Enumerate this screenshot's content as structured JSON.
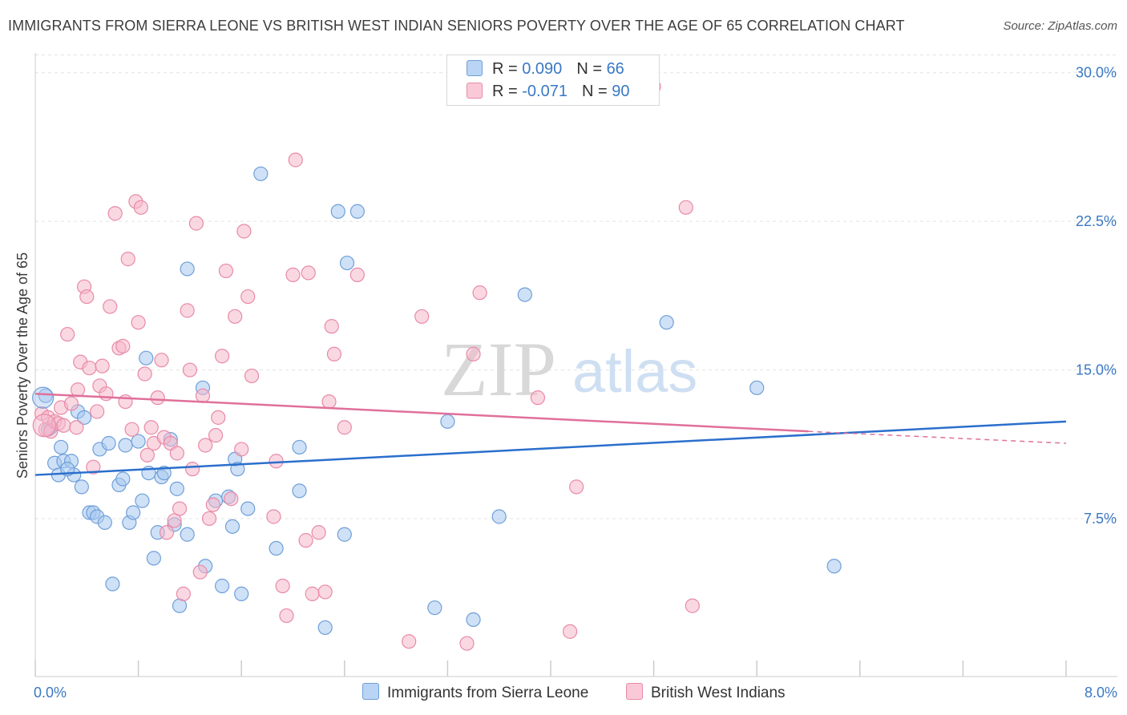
{
  "header": {
    "title": "IMMIGRANTS FROM SIERRA LEONE VS BRITISH WEST INDIAN SENIORS POVERTY OVER THE AGE OF 65 CORRELATION CHART",
    "source": "Source: ZipAtlas.com"
  },
  "watermark": {
    "zip": "ZIP",
    "atlas": "atlas"
  },
  "legend": {
    "series1": {
      "r_label": "R = ",
      "r_value": "0.090",
      "n_label": "N = ",
      "n_value": "66"
    },
    "series2": {
      "r_label": "R = ",
      "r_value": "-0.071",
      "n_label": "N = ",
      "n_value": "90"
    }
  },
  "colors": {
    "blue_fill": "#a8c8f0",
    "blue_stroke": "#6f9fd8",
    "blue_line": "#2a6fcc",
    "pink_fill": "#f6b8cb",
    "pink_stroke": "#e88aa8",
    "pink_line": "#e0709a",
    "grid": "#e3e3e3",
    "axis": "#cccccc",
    "tick_text": "#3a78c4"
  },
  "chart_data": {
    "type": "scatter",
    "title": "IMMIGRANTS FROM SIERRA LEONE VS BRITISH WEST INDIAN SENIORS POVERTY OVER THE AGE OF 65 CORRELATION CHART",
    "xlabel": "",
    "ylabel": "Seniors Poverty Over the Age of 65",
    "xlim": [
      0,
      8
    ],
    "ylim": [
      0.5,
      31.0
    ],
    "x_tick_labels": [
      {
        "value": 0,
        "label": "0.0%"
      },
      {
        "value": 8,
        "label": "8.0%"
      }
    ],
    "y_ticks": [
      {
        "value": 7.5,
        "label": "7.5%"
      },
      {
        "value": 15.0,
        "label": "15.0%"
      },
      {
        "value": 22.5,
        "label": "22.5%"
      },
      {
        "value": 30.0,
        "label": "30.0%"
      }
    ],
    "series": [
      {
        "name": "Immigrants from Sierra Leone",
        "color": "#a8c8f0",
        "trend": {
          "x": [
            0,
            8
          ],
          "y": [
            9.7,
            12.4
          ]
        },
        "points": [
          [
            0.08,
            13.7
          ],
          [
            0.12,
            12.1
          ],
          [
            0.15,
            10.3
          ],
          [
            0.18,
            9.7
          ],
          [
            0.2,
            11.1
          ],
          [
            0.22,
            10.4
          ],
          [
            0.28,
            10.4
          ],
          [
            0.3,
            9.7
          ],
          [
            0.33,
            12.9
          ],
          [
            0.36,
            9.1
          ],
          [
            0.38,
            12.6
          ],
          [
            0.42,
            7.8
          ],
          [
            0.45,
            7.8
          ],
          [
            0.48,
            7.6
          ],
          [
            0.5,
            11.0
          ],
          [
            0.54,
            7.3
          ],
          [
            0.57,
            11.3
          ],
          [
            0.6,
            4.2
          ],
          [
            0.65,
            9.2
          ],
          [
            0.68,
            9.5
          ],
          [
            0.7,
            11.2
          ],
          [
            0.73,
            7.3
          ],
          [
            0.76,
            7.8
          ],
          [
            0.8,
            11.4
          ],
          [
            0.83,
            8.4
          ],
          [
            0.86,
            15.6
          ],
          [
            0.88,
            9.8
          ],
          [
            0.92,
            5.5
          ],
          [
            0.95,
            6.8
          ],
          [
            0.98,
            9.6
          ],
          [
            1.0,
            9.8
          ],
          [
            1.05,
            11.5
          ],
          [
            1.08,
            7.2
          ],
          [
            1.1,
            9.0
          ],
          [
            1.12,
            3.1
          ],
          [
            1.18,
            6.7
          ],
          [
            1.18,
            20.1
          ],
          [
            1.3,
            14.1
          ],
          [
            1.32,
            5.1
          ],
          [
            1.4,
            8.4
          ],
          [
            1.45,
            4.1
          ],
          [
            1.5,
            8.6
          ],
          [
            1.53,
            7.1
          ],
          [
            1.55,
            10.5
          ],
          [
            1.57,
            10.0
          ],
          [
            1.6,
            3.7
          ],
          [
            1.65,
            8.0
          ],
          [
            1.75,
            24.9
          ],
          [
            1.87,
            6.0
          ],
          [
            2.05,
            11.1
          ],
          [
            2.05,
            8.9
          ],
          [
            2.25,
            2.0
          ],
          [
            2.35,
            23.0
          ],
          [
            2.4,
            6.7
          ],
          [
            2.42,
            20.4
          ],
          [
            2.5,
            23.0
          ],
          [
            3.1,
            3.0
          ],
          [
            3.2,
            12.4
          ],
          [
            3.4,
            2.4
          ],
          [
            3.6,
            7.6
          ],
          [
            3.8,
            18.8
          ],
          [
            4.9,
            17.4
          ],
          [
            5.6,
            14.1
          ],
          [
            6.2,
            5.1
          ],
          [
            0.1,
            12.0
          ],
          [
            0.25,
            10.0
          ]
        ]
      },
      {
        "name": "British West Indians",
        "color": "#f6b8cb",
        "trend": {
          "x": [
            0,
            6.0
          ],
          "y": [
            13.8,
            11.9
          ]
        },
        "trend_dashed": {
          "x": [
            6.0,
            8
          ],
          "y": [
            11.9,
            11.3
          ]
        },
        "points": [
          [
            0.05,
            12.8
          ],
          [
            0.08,
            12.0
          ],
          [
            0.1,
            12.6
          ],
          [
            0.12,
            11.9
          ],
          [
            0.15,
            12.4
          ],
          [
            0.18,
            12.3
          ],
          [
            0.2,
            13.1
          ],
          [
            0.22,
            12.2
          ],
          [
            0.25,
            16.8
          ],
          [
            0.28,
            13.3
          ],
          [
            0.32,
            12.1
          ],
          [
            0.33,
            14.0
          ],
          [
            0.35,
            15.4
          ],
          [
            0.38,
            19.2
          ],
          [
            0.4,
            18.7
          ],
          [
            0.42,
            15.1
          ],
          [
            0.45,
            10.1
          ],
          [
            0.48,
            12.9
          ],
          [
            0.5,
            14.2
          ],
          [
            0.52,
            15.2
          ],
          [
            0.55,
            13.8
          ],
          [
            0.58,
            18.2
          ],
          [
            0.62,
            22.9
          ],
          [
            0.65,
            16.1
          ],
          [
            0.68,
            16.2
          ],
          [
            0.7,
            13.4
          ],
          [
            0.72,
            20.6
          ],
          [
            0.75,
            12.0
          ],
          [
            0.78,
            23.5
          ],
          [
            0.8,
            17.4
          ],
          [
            0.82,
            23.2
          ],
          [
            0.85,
            14.8
          ],
          [
            0.87,
            10.7
          ],
          [
            0.9,
            12.1
          ],
          [
            0.92,
            11.3
          ],
          [
            0.95,
            13.6
          ],
          [
            0.98,
            15.5
          ],
          [
            1.0,
            11.6
          ],
          [
            1.02,
            6.8
          ],
          [
            1.05,
            11.3
          ],
          [
            1.08,
            7.4
          ],
          [
            1.1,
            10.8
          ],
          [
            1.12,
            8.0
          ],
          [
            1.15,
            3.7
          ],
          [
            1.18,
            18.0
          ],
          [
            1.2,
            15.0
          ],
          [
            1.22,
            10.0
          ],
          [
            1.25,
            22.4
          ],
          [
            1.28,
            4.8
          ],
          [
            1.3,
            13.7
          ],
          [
            1.32,
            11.2
          ],
          [
            1.35,
            7.5
          ],
          [
            1.38,
            8.2
          ],
          [
            1.4,
            11.7
          ],
          [
            1.42,
            12.6
          ],
          [
            1.45,
            15.7
          ],
          [
            1.48,
            20.0
          ],
          [
            1.52,
            8.5
          ],
          [
            1.55,
            17.7
          ],
          [
            1.6,
            11.0
          ],
          [
            1.62,
            22.0
          ],
          [
            1.65,
            18.7
          ],
          [
            1.68,
            14.7
          ],
          [
            1.85,
            7.6
          ],
          [
            1.87,
            10.4
          ],
          [
            1.92,
            4.1
          ],
          [
            1.95,
            2.6
          ],
          [
            2.0,
            19.8
          ],
          [
            2.02,
            25.6
          ],
          [
            2.1,
            6.4
          ],
          [
            2.12,
            19.9
          ],
          [
            2.15,
            3.7
          ],
          [
            2.2,
            6.8
          ],
          [
            2.25,
            3.8
          ],
          [
            2.28,
            13.4
          ],
          [
            2.3,
            17.2
          ],
          [
            2.32,
            15.8
          ],
          [
            2.4,
            12.1
          ],
          [
            2.5,
            19.8
          ],
          [
            2.9,
            1.3
          ],
          [
            3.0,
            17.7
          ],
          [
            3.35,
            1.2
          ],
          [
            3.4,
            15.8
          ],
          [
            3.45,
            18.9
          ],
          [
            3.9,
            13.6
          ],
          [
            4.15,
            1.8
          ],
          [
            4.2,
            9.1
          ],
          [
            4.8,
            29.3
          ],
          [
            5.05,
            23.2
          ],
          [
            5.1,
            3.1
          ]
        ]
      }
    ]
  },
  "bottom_legend": {
    "item1": "Immigrants from Sierra Leone",
    "item2": "British West Indians"
  }
}
